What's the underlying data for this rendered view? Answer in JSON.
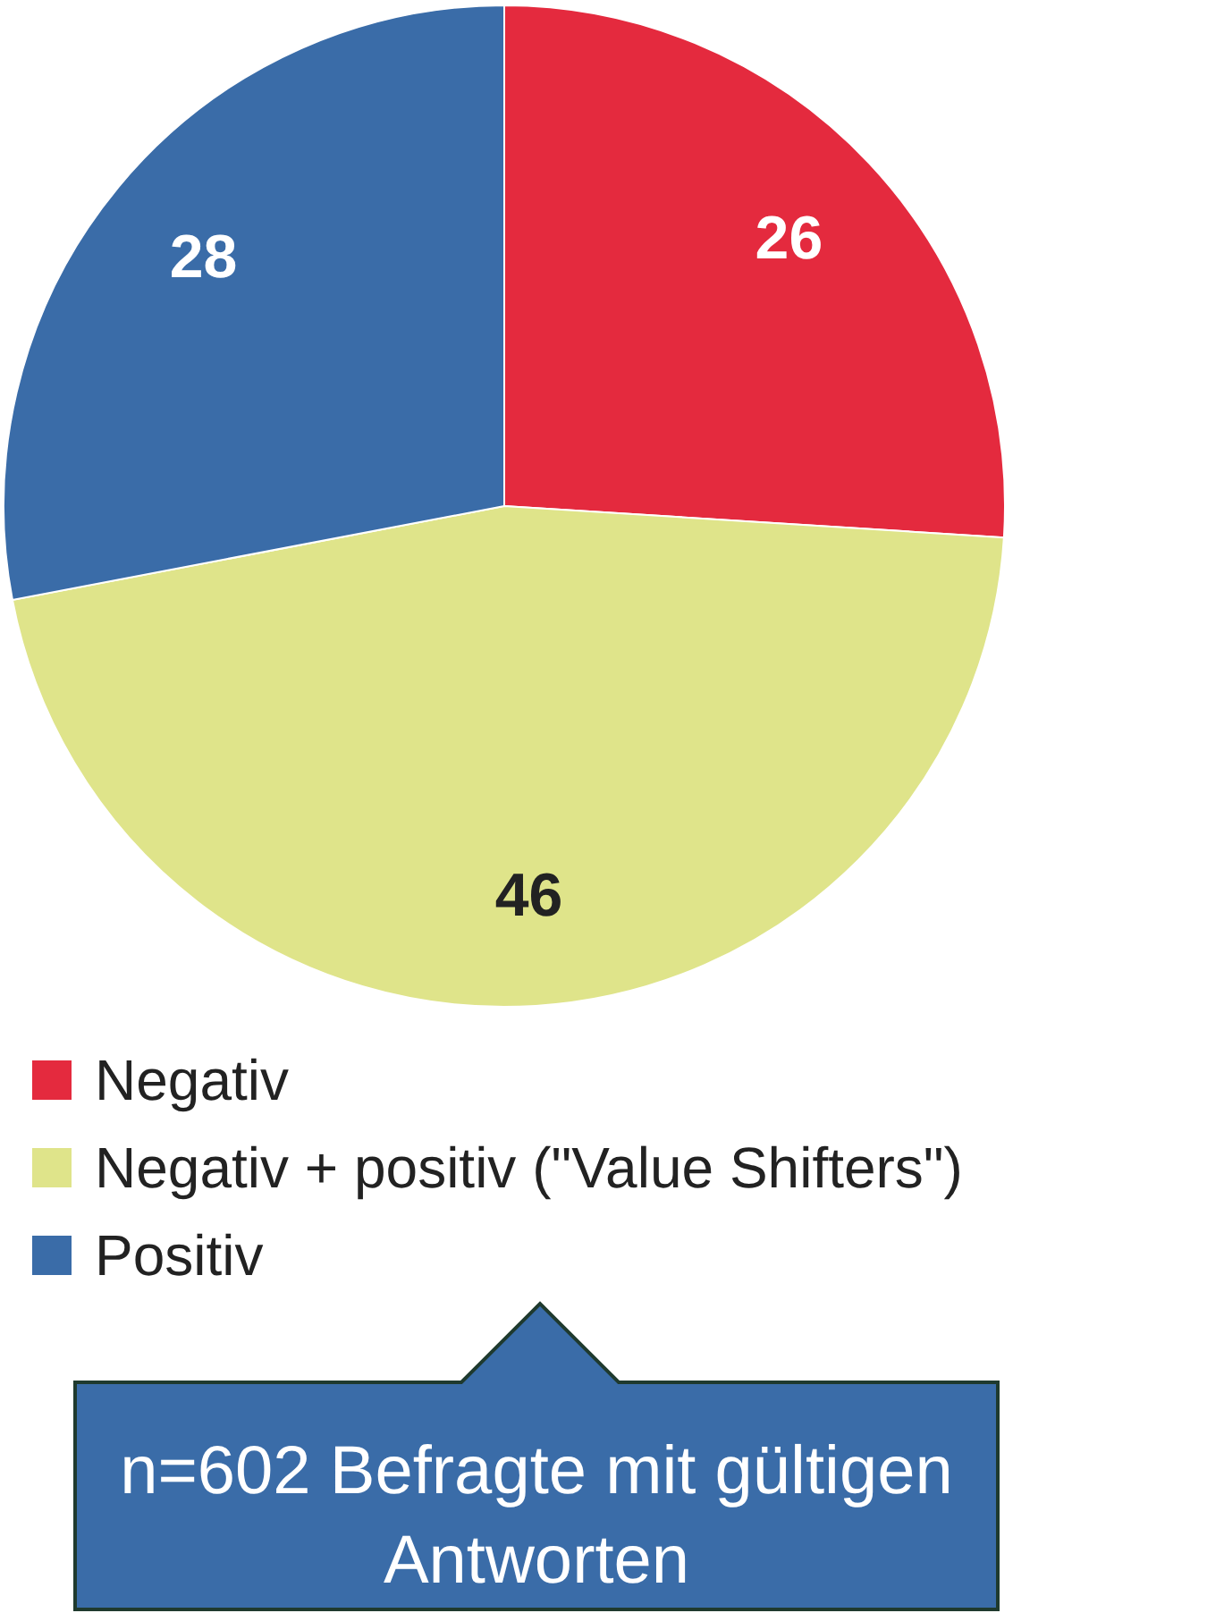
{
  "chart_data": {
    "type": "pie",
    "categories": [
      "Negativ",
      "Negativ + positiv (\"Value Shifters\")",
      "Positiv"
    ],
    "values": [
      26,
      46,
      28
    ],
    "colors": [
      "#e42a3e",
      "#dfe48a",
      "#3a6ca8"
    ],
    "data_labels": true,
    "legend": "bottom",
    "annotations": [
      "n=602 Befragte mit gültigen Antworten"
    ]
  }
}
